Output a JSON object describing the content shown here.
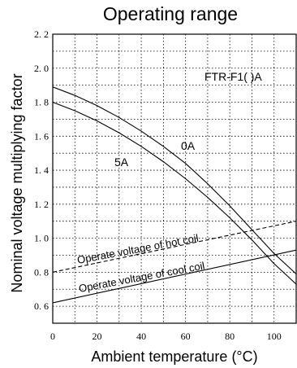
{
  "chart_data": {
    "type": "line",
    "title": "Operating range",
    "xlabel": "Ambient temperature (°C)",
    "ylabel": "Nominal voltage multiplying factor",
    "xlim": [
      0,
      110
    ],
    "ylim": [
      0.5,
      2.2
    ],
    "x_ticks": [
      0,
      20,
      40,
      60,
      80,
      100
    ],
    "x_tick_labels": [
      "0",
      "20",
      "40",
      "60",
      "80",
      "100"
    ],
    "y_ticks": [
      0.6,
      0.8,
      1.0,
      1.2,
      1.4,
      1.6,
      1.8,
      2.0,
      2.2
    ],
    "y_tick_labels": [
      "0. 6",
      "0. 8",
      "1. 0",
      "1. 2",
      "1. 4",
      "1. 6",
      "1. 8",
      "2. 0",
      "2. 2"
    ],
    "grid": true,
    "model_label": "FTR-F1( )A",
    "series": [
      {
        "name": "0A",
        "style": "solid",
        "x": [
          0,
          10,
          20,
          30,
          40,
          50,
          60,
          70,
          80,
          90,
          100,
          110
        ],
        "y": [
          1.89,
          1.84,
          1.78,
          1.71,
          1.63,
          1.54,
          1.44,
          1.32,
          1.19,
          1.05,
          0.91,
          0.79
        ]
      },
      {
        "name": "5A",
        "style": "solid",
        "x": [
          0,
          10,
          20,
          30,
          40,
          50,
          60,
          70,
          80,
          90,
          100,
          110
        ],
        "y": [
          1.8,
          1.75,
          1.69,
          1.62,
          1.54,
          1.45,
          1.35,
          1.24,
          1.12,
          0.99,
          0.85,
          0.73
        ]
      },
      {
        "name": "Operate voltage of hot coil",
        "style": "dashed",
        "x": [
          0,
          110
        ],
        "y": [
          0.8,
          1.1
        ]
      },
      {
        "name": "Operate voltage of cool coil",
        "style": "solid",
        "x": [
          0,
          110
        ],
        "y": [
          0.62,
          0.93
        ]
      }
    ]
  }
}
